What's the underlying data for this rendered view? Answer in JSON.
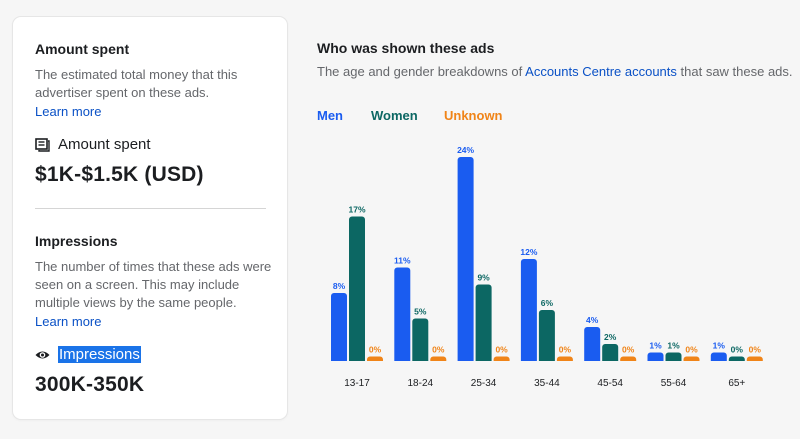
{
  "amount_spent": {
    "title": "Amount spent",
    "description": "The estimated total money that this advertiser spent on these ads.",
    "learn_more": "Learn more",
    "label": "Amount spent",
    "value": "$1K-$1.5K (USD)",
    "icon": "money-icon"
  },
  "impressions": {
    "title": "Impressions",
    "description": "The number of times that these ads were seen on a screen. This may include multiple views by the same people.",
    "learn_more": "Learn more",
    "label": "Impressions",
    "value": "300K-350K",
    "icon": "eye-icon"
  },
  "audience": {
    "title": "Who was shown these ads",
    "subtitle_prefix": "The age and gender breakdowns of ",
    "subtitle_link": "Accounts Centre accounts",
    "subtitle_suffix": " that saw these ads."
  },
  "colors": {
    "men": "#1a5cf0",
    "women": "#0c6763",
    "unknown": "#f08418",
    "link": "#0a51c6"
  },
  "chart_data": {
    "type": "bar",
    "categories": [
      "13-17",
      "18-24",
      "25-34",
      "35-44",
      "45-54",
      "55-64",
      "65+"
    ],
    "series": [
      {
        "name": "Men",
        "values": [
          8,
          11,
          24,
          12,
          4,
          1,
          1
        ],
        "labels": [
          "8%",
          "11%",
          "24%",
          "12%",
          "4%",
          "1%",
          "1%"
        ]
      },
      {
        "name": "Women",
        "values": [
          17,
          5,
          9,
          6,
          2,
          1,
          0
        ],
        "labels": [
          "17%",
          "5%",
          "9%",
          "6%",
          "2%",
          "1%",
          "0%"
        ]
      },
      {
        "name": "Unknown",
        "values": [
          0,
          0,
          0,
          0,
          0,
          0,
          0
        ],
        "labels": [
          "0%",
          "0%",
          "0%",
          "0%",
          "0%",
          "0%",
          "0%"
        ]
      }
    ],
    "ylim": [
      0,
      24
    ],
    "grid": false,
    "legend_position": "top-left"
  }
}
